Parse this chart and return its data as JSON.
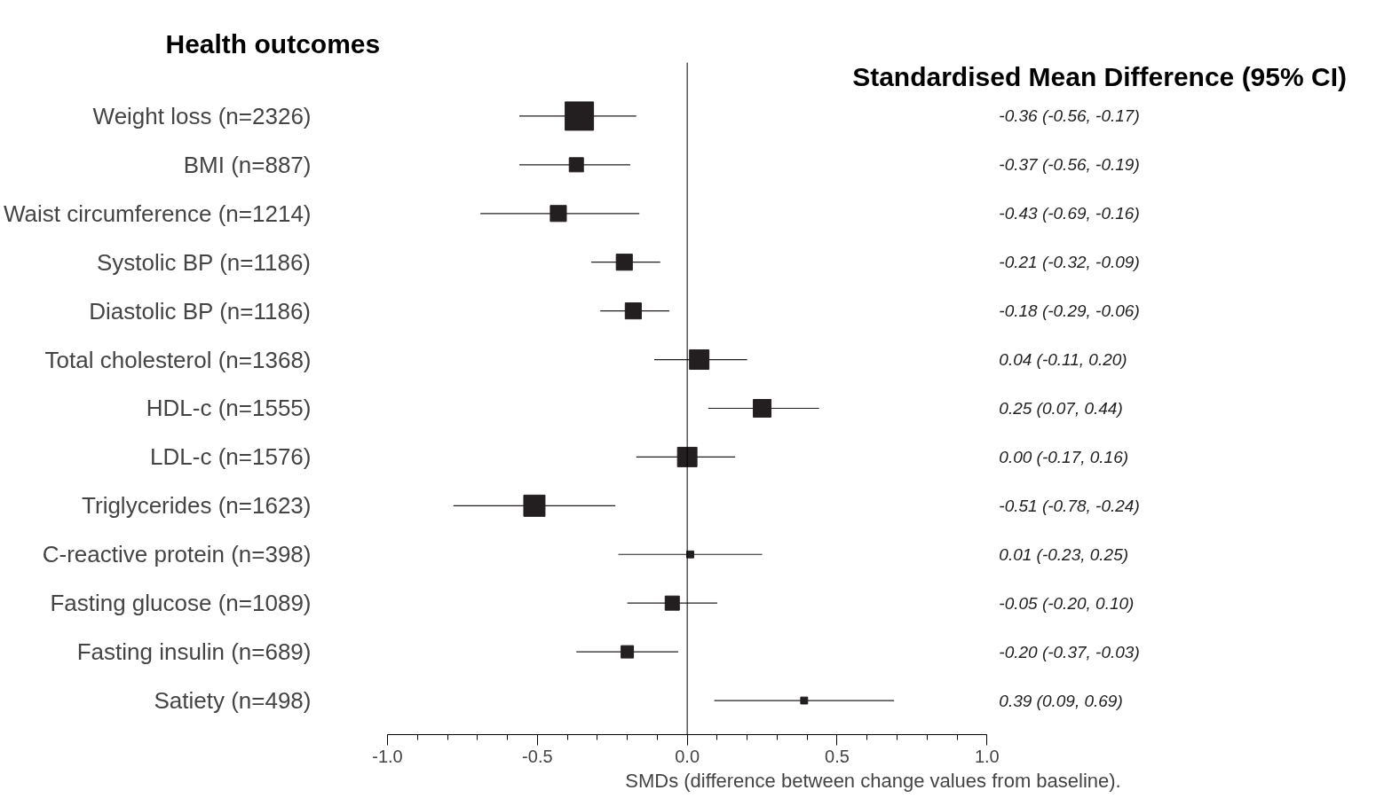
{
  "chart_data": {
    "type": "bubble",
    "marker": "square",
    "orientation": "horizontal",
    "title": "Standardised Mean Difference (95% CI)",
    "ylabel": "Health outcomes",
    "xlabel": "SMDs (difference between change values from baseline).",
    "categories": [
      "Weight loss (n=2326)",
      "BMI (n=887)",
      "Waist circumference (n=1214)",
      "Systolic BP (n=1186)",
      "Diastolic BP (n=1186)",
      "Total cholesterol (n=1368)",
      "HDL-c (n=1555)",
      "LDL-c (n=1576)",
      "Triglycerides (n=1623)",
      "C-reactive protein (n=398)",
      "Fasting glucose (n=1089)",
      "Fasting insulin (n=689)",
      "Satiety (n=498)"
    ],
    "values": [
      -0.36,
      -0.37,
      -0.43,
      -0.21,
      -0.18,
      0.04,
      0.25,
      0.0,
      -0.51,
      0.01,
      -0.05,
      -0.2,
      0.39
    ],
    "errors": [
      [
        -0.56,
        -0.17
      ],
      [
        -0.56,
        -0.19
      ],
      [
        -0.69,
        -0.16
      ],
      [
        -0.32,
        -0.09
      ],
      [
        -0.29,
        -0.06
      ],
      [
        -0.11,
        0.2
      ],
      [
        0.07,
        0.44
      ],
      [
        -0.17,
        0.16
      ],
      [
        -0.78,
        -0.24
      ],
      [
        -0.23,
        0.25
      ],
      [
        -0.2,
        0.1
      ],
      [
        -0.37,
        -0.03
      ],
      [
        0.09,
        0.69
      ]
    ],
    "sizes": [
      1,
      0.25,
      0.32,
      0.32,
      0.32,
      0.47,
      0.39,
      0.47,
      0.56,
      0.06,
      0.25,
      0.19,
      0.06
    ],
    "colors": [
      "#231f20",
      "#231f20",
      "#231f20",
      "#231f20",
      "#231f20",
      "#231f20",
      "#231f20",
      "#231f20",
      "#231f20",
      "#231f20",
      "#231f20",
      "#231f20",
      "#231f20"
    ],
    "annotations": [
      "-0.36 (-0.56, -0.17)",
      "-0.37 (-0.56, -0.19)",
      "-0.43 (-0.69, -0.16)",
      "-0.21 (-0.32, -0.09)",
      "-0.18 (-0.29, -0.06)",
      "0.04 (-0.11, 0.20)",
      "0.25 (0.07, 0.44)",
      "0.00 (-0.17, 0.16)",
      "-0.51 (-0.78, -0.24)",
      "0.01 (-0.23, 0.25)",
      "-0.05 (-0.20, 0.10)",
      "-0.20 (-0.37, -0.03)",
      "0.39 (0.09, 0.69)"
    ],
    "xlim": [
      -1,
      1
    ],
    "xticks": [
      {
        "value": -1,
        "label": "-1.0"
      },
      {
        "value": -0.5,
        "label": "-0.5"
      },
      {
        "value": 0,
        "label": "0.0"
      },
      {
        "value": 0.5,
        "label": "0.5"
      },
      {
        "value": 1,
        "label": "1.0"
      }
    ],
    "ref_lines": [
      {
        "axis": "x",
        "value": 0,
        "label": null,
        "color": "#000000"
      }
    ],
    "grid": false
  }
}
